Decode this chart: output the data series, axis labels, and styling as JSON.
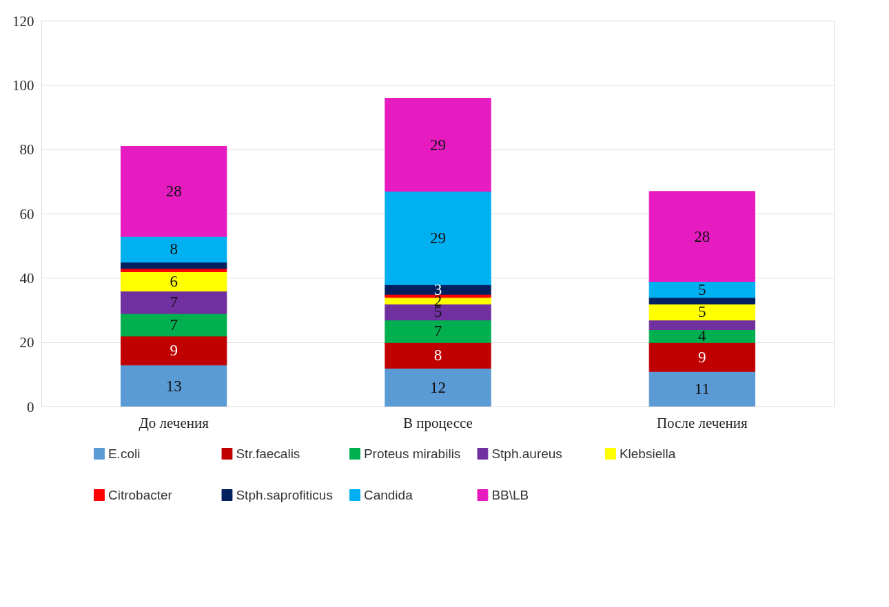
{
  "chart_data": {
    "type": "bar",
    "stacked": true,
    "categories": [
      "До лечения",
      "В процессе",
      "После лечения"
    ],
    "series": [
      {
        "name": "E.coli",
        "color": "#5b9bd5",
        "values": [
          13,
          12,
          11
        ],
        "value_labels": [
          "13",
          "12",
          "11"
        ]
      },
      {
        "name": "Str.faecalis",
        "color": "#c00000",
        "values": [
          9,
          8,
          9
        ],
        "value_labels": [
          "9",
          "8",
          "9"
        ]
      },
      {
        "name": "Proteus mirabilis",
        "color": "#00b050",
        "values": [
          7,
          7,
          4
        ],
        "value_labels": [
          "7",
          "7",
          "4"
        ]
      },
      {
        "name": "Stph.aureus",
        "color": "#7030a0",
        "values": [
          7,
          5,
          3
        ],
        "value_labels": [
          "7",
          "5",
          null
        ]
      },
      {
        "name": "Klebsiella",
        "color": "#ffff00",
        "values": [
          6,
          2,
          5
        ],
        "value_labels": [
          "6",
          "2",
          "5"
        ]
      },
      {
        "name": "Citrobacter",
        "color": "#ff0000",
        "values": [
          1,
          1,
          null
        ],
        "value_labels": [
          null,
          null,
          null
        ]
      },
      {
        "name": "Stph.saprofiticus",
        "color": "#002060",
        "values": [
          2,
          3,
          2
        ],
        "value_labels": [
          null,
          "3",
          null
        ]
      },
      {
        "name": "Candida",
        "color": "#00b0f0",
        "values": [
          8,
          29,
          5
        ],
        "value_labels": [
          "8",
          "29",
          "5"
        ]
      },
      {
        "name": "BB\\LB",
        "color": "#e61cc0",
        "values": [
          28,
          29,
          28
        ],
        "value_labels": [
          "28",
          "29",
          "28"
        ]
      }
    ],
    "ylim": [
      0,
      120
    ],
    "yticks": [
      0,
      20,
      40,
      60,
      80,
      100,
      120
    ],
    "grid": "y",
    "legend": "bottom"
  }
}
